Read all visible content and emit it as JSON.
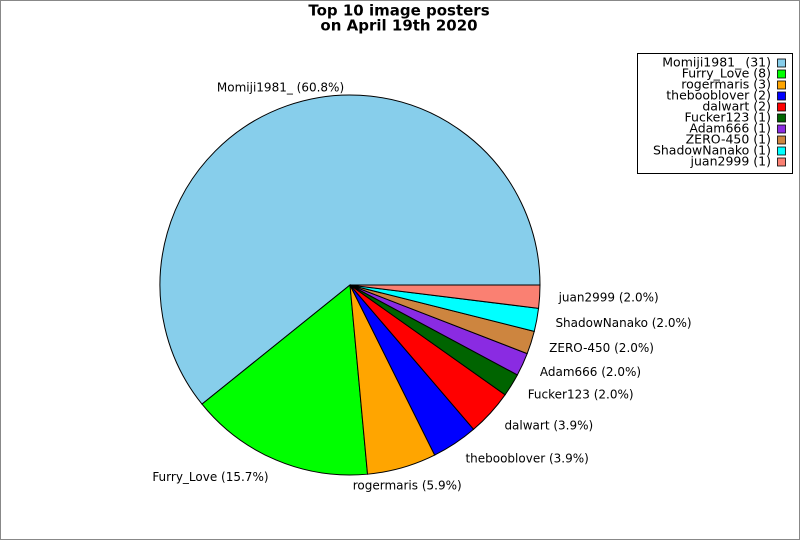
{
  "chart_data": {
    "type": "pie",
    "title_lines": [
      "Top 10 image posters",
      "on April 19th 2020"
    ],
    "categories": [
      "Momiji1981_",
      "Furry_Love",
      "rogermaris",
      "thebooblover",
      "dalwart",
      "Fucker123",
      "Adam666",
      "ZERO-450",
      "ShadowNanako",
      "juan2999"
    ],
    "values": [
      31,
      8,
      3,
      2,
      2,
      1,
      1,
      1,
      1,
      1
    ],
    "slice_labels": [
      "Momiji1981_ (60.8%)",
      "Furry_Love (15.7%)",
      "rogermaris (5.9%)",
      "thebooblover (3.9%)",
      "dalwart (3.9%)",
      "Fucker123 (2.0%)",
      "Adam666 (2.0%)",
      "ZERO-450 (2.0%)",
      "ShadowNanako (2.0%)",
      "juan2999 (2.0%)"
    ],
    "legend_labels": [
      "Momiji1981_ (31)",
      "Furry_Love (8)",
      "rogermaris (3)",
      "thebooblover (2)",
      "dalwart (2)",
      "Fucker123 (1)",
      "Adam666 (1)",
      "ZERO-450 (1)",
      "ShadowNanako (1)",
      "juan2999 (1)"
    ],
    "colors": [
      "#87ceeb",
      "#00ff00",
      "#ffa500",
      "#0000ff",
      "#ff0000",
      "#006400",
      "#8a2be2",
      "#cd853f",
      "#00ffff",
      "#fa8072"
    ],
    "legend": "upper right"
  }
}
